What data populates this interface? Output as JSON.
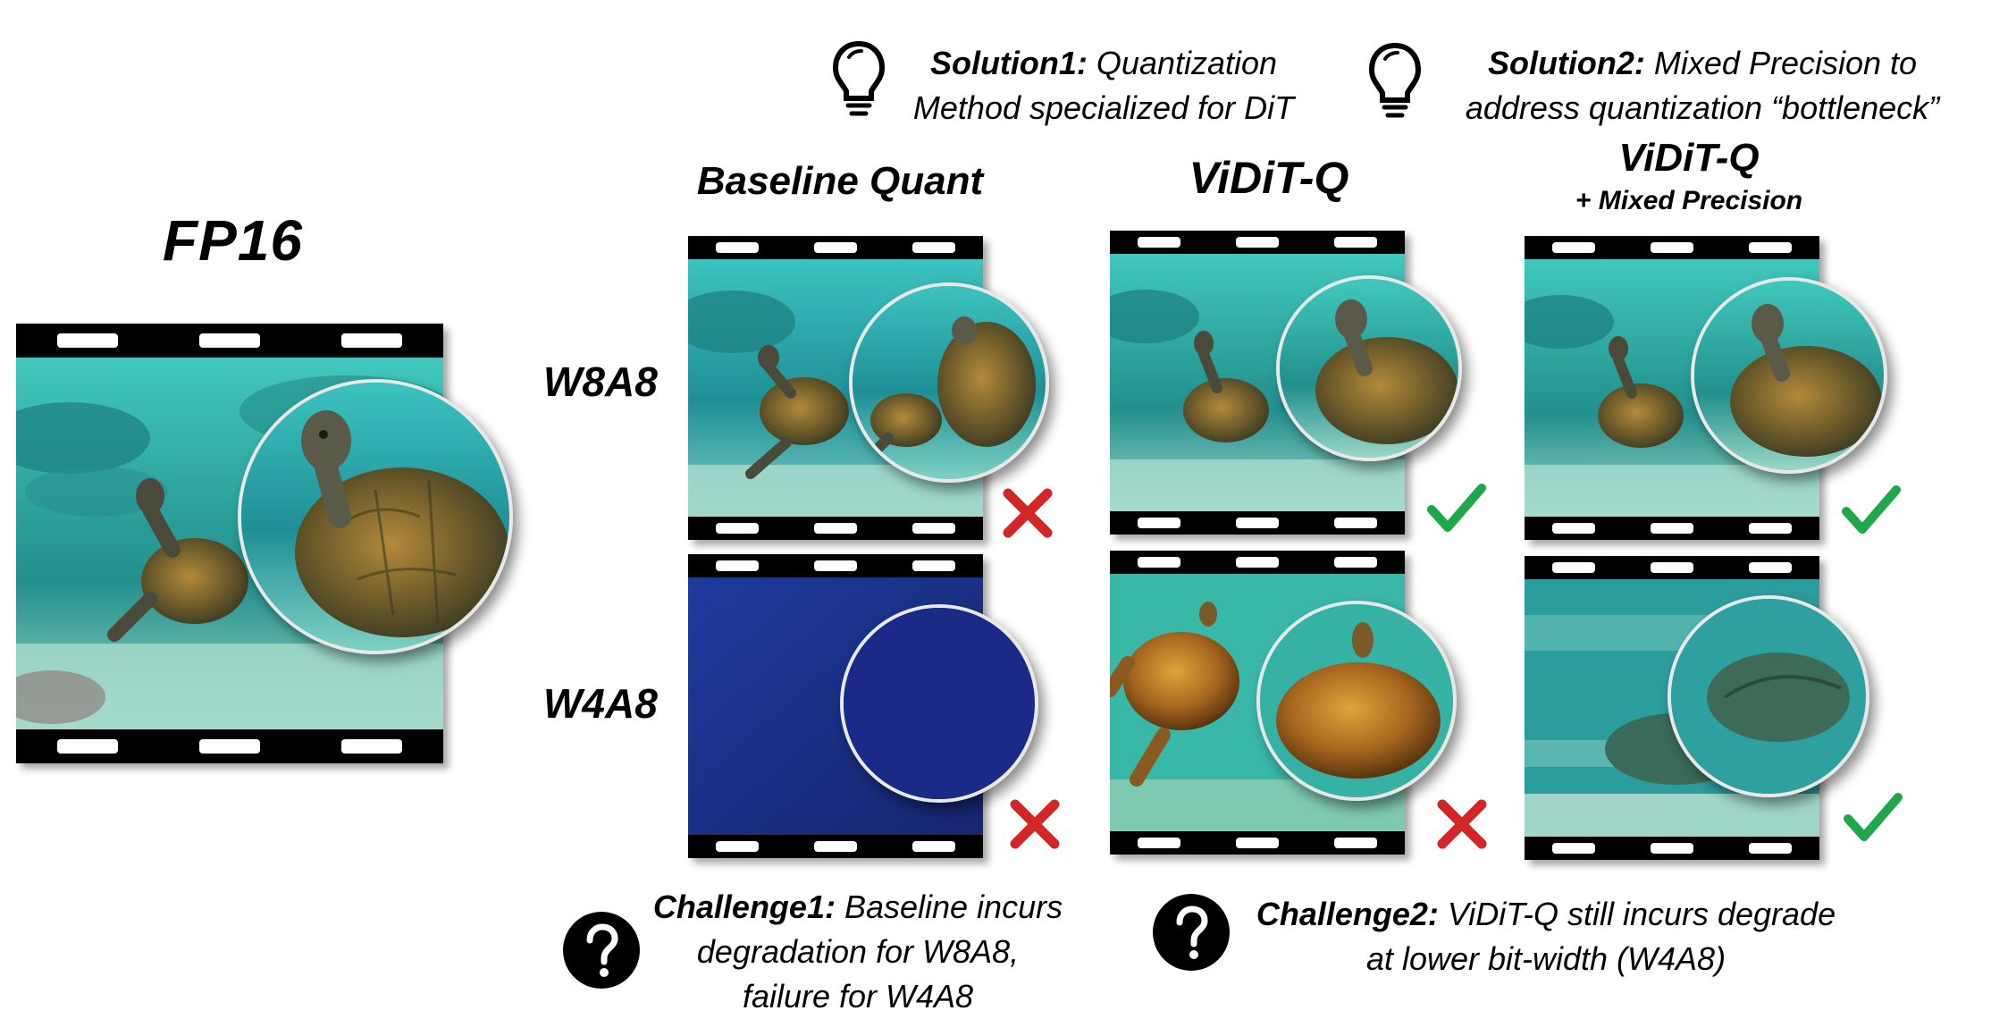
{
  "fp16": {
    "title": "FP16"
  },
  "columns": [
    {
      "title": "Baseline Quant",
      "subtitle": ""
    },
    {
      "title": "ViDiT-Q",
      "subtitle": ""
    },
    {
      "title": "ViDiT-Q",
      "subtitle": "+ Mixed Precision"
    }
  ],
  "rows": [
    {
      "label": "W8A8",
      "results": [
        "fail",
        "pass",
        "pass"
      ]
    },
    {
      "label": "W4A8",
      "results": [
        "fail",
        "fail",
        "pass"
      ]
    }
  ],
  "solutions": [
    {
      "bold": "Solution1:",
      "line1": " Quantization",
      "line2": "Method specialized for DiT",
      "icon": "lightbulb-icon"
    },
    {
      "bold": "Solution2:",
      "line1": " Mixed Precision to",
      "line2": "address quantization “bottleneck”",
      "icon": "lightbulb-icon"
    }
  ],
  "challenges": [
    {
      "bold": "Challenge1:",
      "line1": " Baseline incurs",
      "line2": "degradation for W8A8,",
      "line3": "failure for W4A8",
      "icon": "question-icon"
    },
    {
      "bold": "Challenge2:",
      "line1": " ViDiT-Q still incurs degrade",
      "line2": "at lower bit-width (W4A8)",
      "icon": "question-icon"
    }
  ],
  "colors": {
    "pass": "#1fa84a",
    "fail": "#d32626",
    "water": "#2fa7a7",
    "collapsed": "#1a2f8f"
  }
}
